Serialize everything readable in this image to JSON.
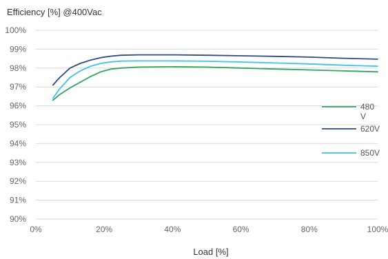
{
  "chart_data": {
    "type": "line",
    "title": "Efficiency [%] @400Vac",
    "xlabel": "Load [%]",
    "ylabel": "",
    "xlim": [
      0,
      100
    ],
    "ylim": [
      90,
      100
    ],
    "x_ticks": [
      {
        "value": 0,
        "label": "0%"
      },
      {
        "value": 20,
        "label": "20%"
      },
      {
        "value": 40,
        "label": "40%"
      },
      {
        "value": 60,
        "label": "60%"
      },
      {
        "value": 80,
        "label": "80%"
      },
      {
        "value": 100,
        "label": "100%"
      }
    ],
    "y_ticks": [
      {
        "value": 90,
        "label": "90%"
      },
      {
        "value": 91,
        "label": "91%"
      },
      {
        "value": 92,
        "label": "92%"
      },
      {
        "value": 93,
        "label": "93%"
      },
      {
        "value": 94,
        "label": "94%"
      },
      {
        "value": 95,
        "label": "95%"
      },
      {
        "value": 96,
        "label": "96%"
      },
      {
        "value": 97,
        "label": "97%"
      },
      {
        "value": 98,
        "label": "98%"
      },
      {
        "value": 99,
        "label": "99%"
      },
      {
        "value": 100,
        "label": "100%"
      }
    ],
    "grid": "horizontal",
    "legend_position": "right",
    "series": [
      {
        "name": "480\nV",
        "color": "#2ea55e",
        "x": [
          5,
          7,
          10,
          13,
          16,
          19,
          22,
          25,
          30,
          40,
          50,
          60,
          70,
          80,
          90,
          100
        ],
        "y": [
          96.3,
          96.6,
          96.95,
          97.25,
          97.55,
          97.8,
          97.95,
          98.0,
          98.05,
          98.07,
          98.05,
          98.0,
          97.95,
          97.9,
          97.85,
          97.8
        ]
      },
      {
        "name": "620V",
        "color": "#2e4a7e",
        "x": [
          5,
          7,
          10,
          13,
          16,
          19,
          22,
          25,
          30,
          40,
          50,
          60,
          70,
          80,
          90,
          100
        ],
        "y": [
          97.1,
          97.5,
          98.0,
          98.25,
          98.42,
          98.55,
          98.63,
          98.68,
          98.7,
          98.7,
          98.68,
          98.65,
          98.62,
          98.58,
          98.52,
          98.47
        ]
      },
      {
        "name": "850V",
        "color": "#3bc3e8",
        "x": [
          5,
          7,
          10,
          13,
          16,
          19,
          22,
          25,
          30,
          40,
          50,
          60,
          70,
          80,
          90,
          100
        ],
        "y": [
          96.4,
          96.9,
          97.5,
          97.85,
          98.1,
          98.25,
          98.33,
          98.37,
          98.38,
          98.38,
          98.36,
          98.32,
          98.27,
          98.22,
          98.15,
          98.1
        ]
      }
    ]
  }
}
